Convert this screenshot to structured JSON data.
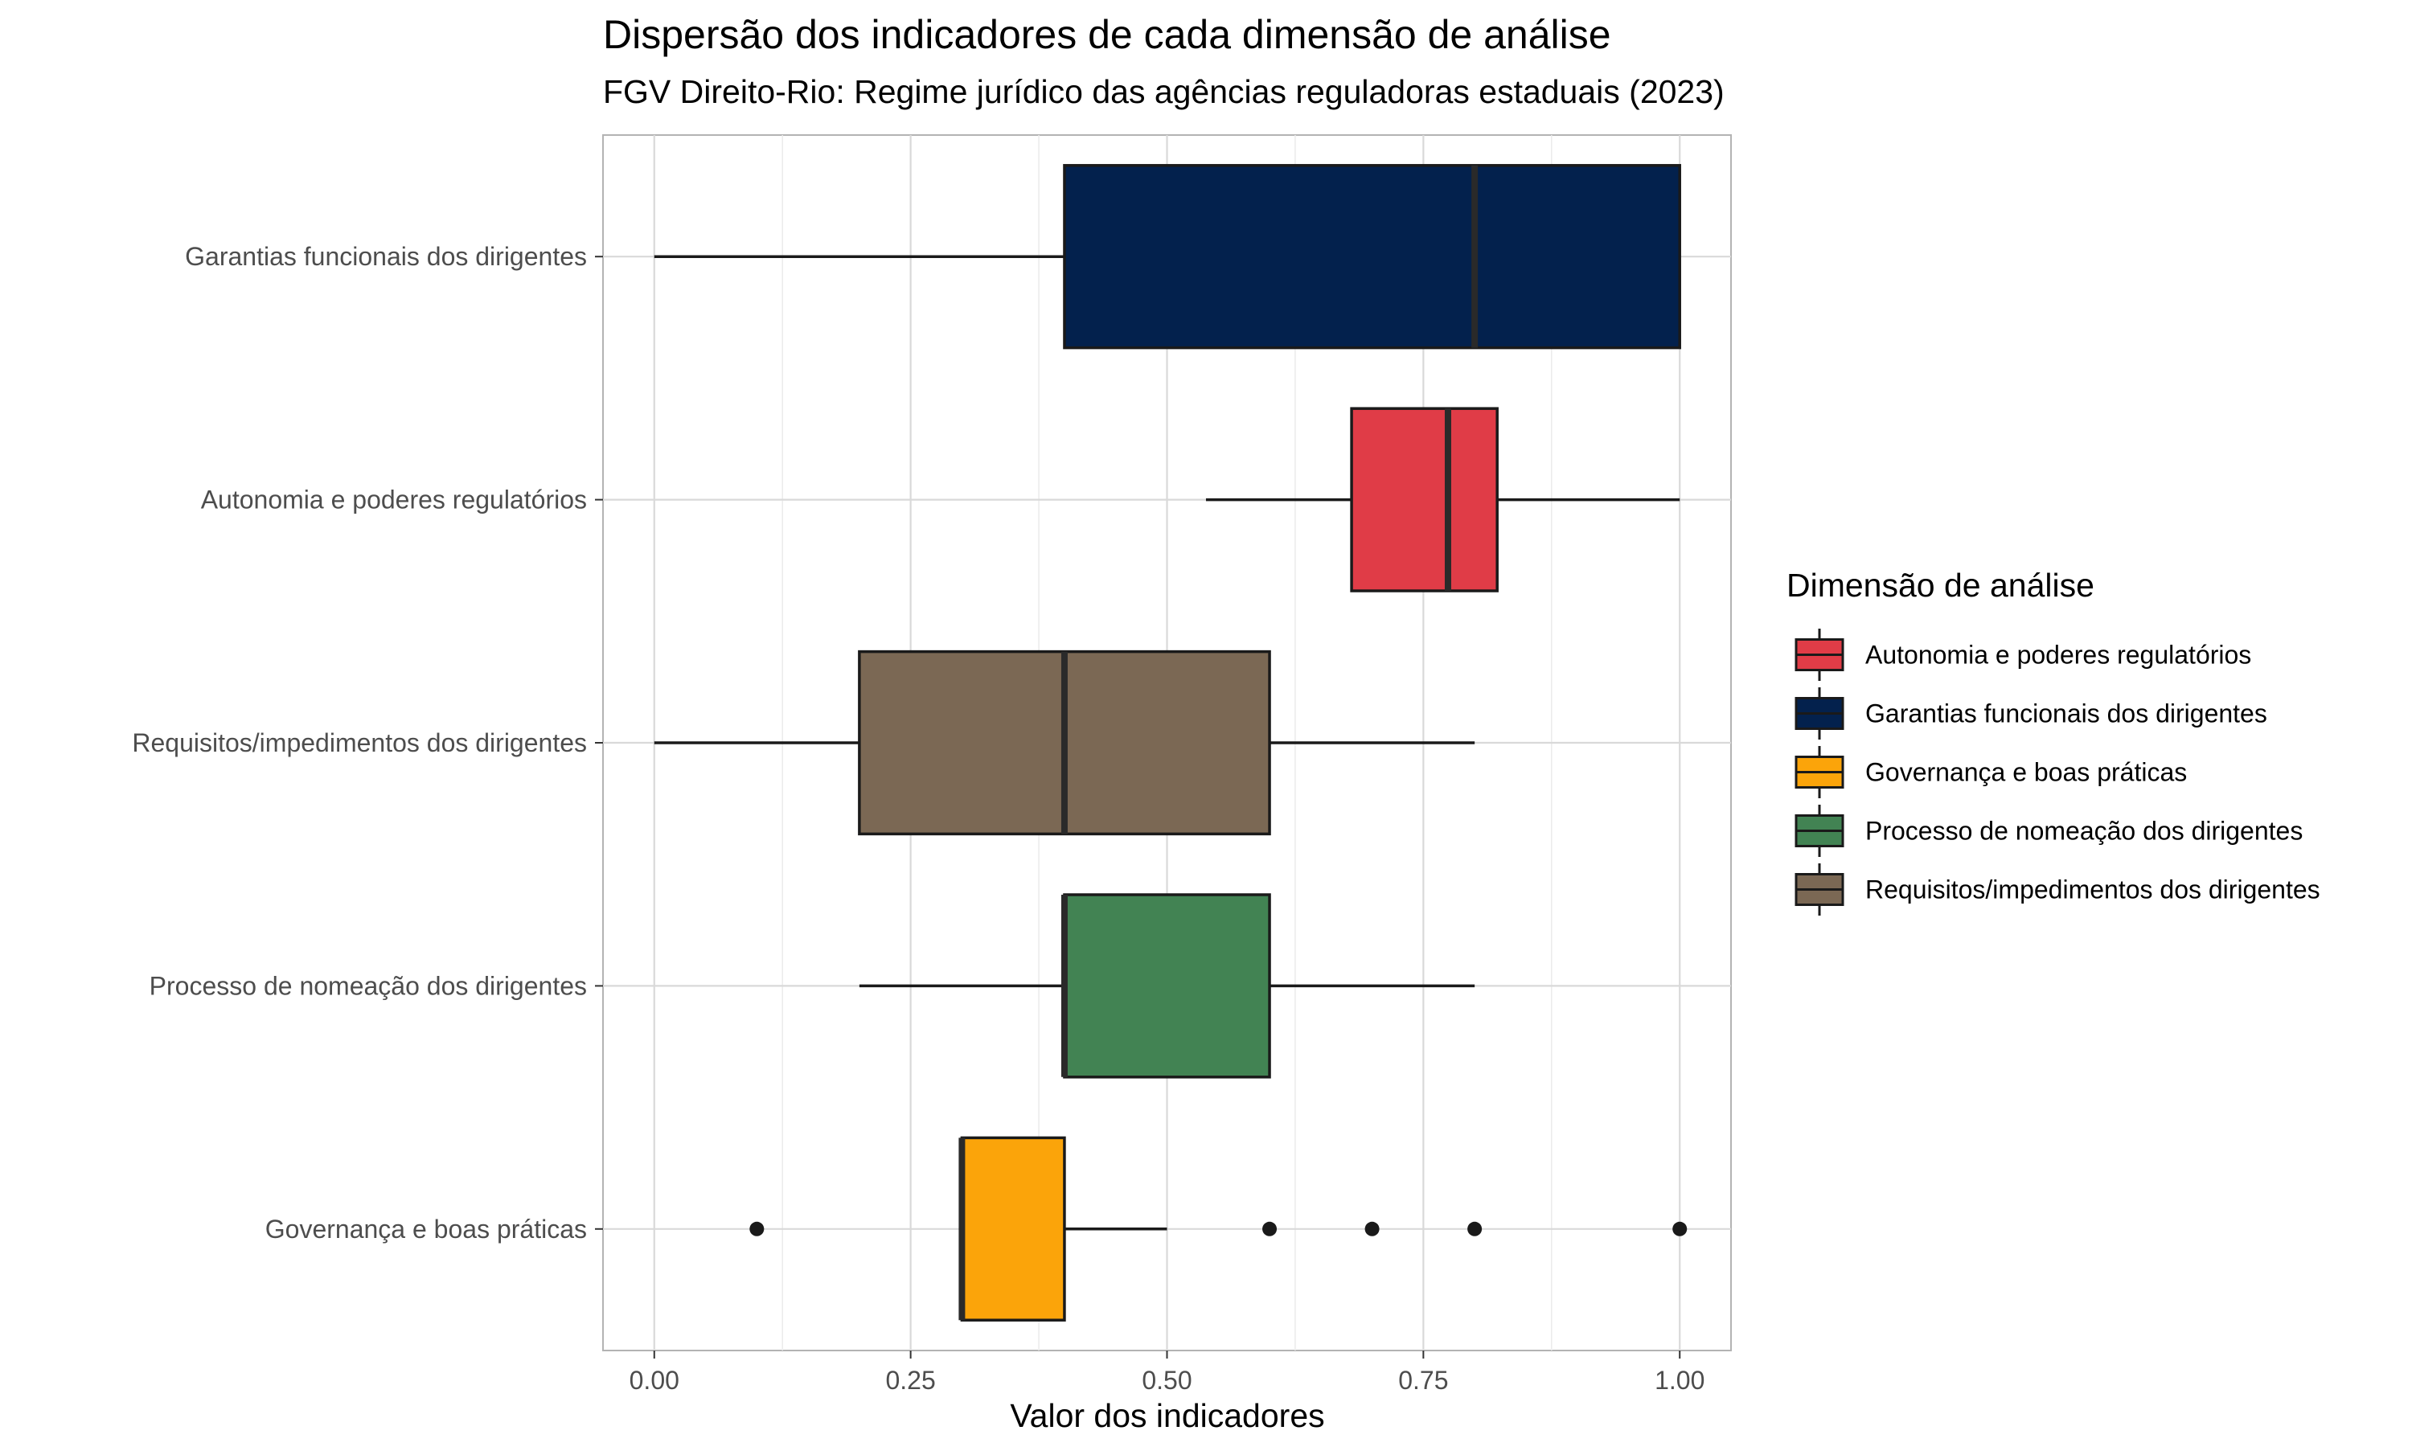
{
  "chart_data": {
    "type": "boxplot",
    "title": "Dispersão dos indicadores de cada dimensão de análise",
    "subtitle": "FGV Direito-Rio: Regime jurídico das agências reguladoras estaduais (2023)",
    "xlabel": "Valor dos indicadores",
    "ylabel": "",
    "xlim": [
      -0.05,
      1.05
    ],
    "xticks": [
      0.0,
      0.25,
      0.5,
      0.75,
      1.0
    ],
    "xtick_labels": [
      "0.00",
      "0.25",
      "0.50",
      "0.75",
      "1.00"
    ],
    "grid": true,
    "categories": [
      "Garantias funcionais dos dirigentes",
      "Autonomia e poderes regulatórios",
      "Requisitos/impedimentos dos dirigentes",
      "Processo de nomeação dos dirigentes",
      "Governança e boas práticas"
    ],
    "boxes": [
      {
        "category": "Garantias funcionais dos dirigentes",
        "whisker_low": 0.0,
        "q1": 0.4,
        "median": 0.8,
        "q3": 1.0,
        "whisker_high": 1.0,
        "outliers": [],
        "color": "#03214d"
      },
      {
        "category": "Autonomia e poderes regulatórios",
        "whisker_low": 0.538,
        "q1": 0.68,
        "median": 0.774,
        "q3": 0.822,
        "whisker_high": 1.0,
        "outliers": [],
        "color": "#e03c47"
      },
      {
        "category": "Requisitos/impedimentos dos dirigentes",
        "whisker_low": 0.0,
        "q1": 0.2,
        "median": 0.4,
        "q3": 0.6,
        "whisker_high": 0.8,
        "outliers": [],
        "color": "#7b6854"
      },
      {
        "category": "Processo de nomeação dos dirigentes",
        "whisker_low": 0.2,
        "q1": 0.4,
        "median": 0.4,
        "q3": 0.6,
        "whisker_high": 0.8,
        "outliers": [],
        "color": "#428353"
      },
      {
        "category": "Governança e boas práticas",
        "whisker_low": 0.3,
        "q1": 0.3,
        "median": 0.3,
        "q3": 0.4,
        "whisker_high": 0.5,
        "outliers": [
          0.1,
          0.6,
          0.7,
          0.8,
          1.0
        ],
        "color": "#fba40a"
      }
    ],
    "legend": {
      "title": "Dimensão de análise",
      "position": "right",
      "entries": [
        {
          "label": "Autonomia e poderes regulatórios",
          "color": "#e03c47"
        },
        {
          "label": "Garantias funcionais dos dirigentes",
          "color": "#03214d"
        },
        {
          "label": "Governança e boas práticas",
          "color": "#fba40a"
        },
        {
          "label": "Processo de nomeação dos dirigentes",
          "color": "#428353"
        },
        {
          "label": "Requisitos/impedimentos dos dirigentes",
          "color": "#7b6854"
        }
      ]
    }
  }
}
